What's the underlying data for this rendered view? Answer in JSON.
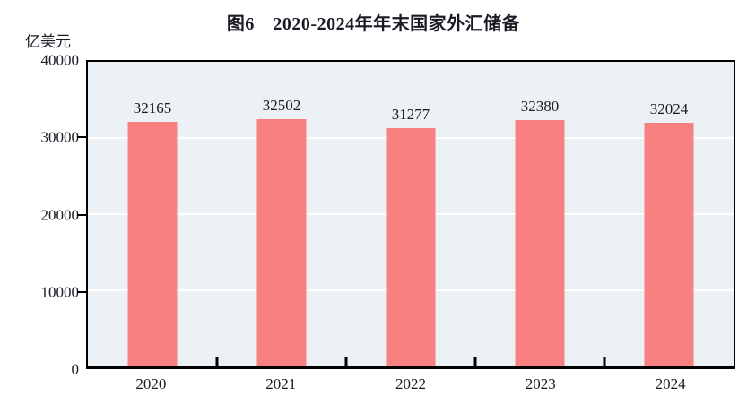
{
  "figure": {
    "title": "图6　2020-2024年年末国家外汇储备",
    "unit_label": "亿美元"
  },
  "chart_data": {
    "type": "bar",
    "title": "图6　2020-2024年年末国家外汇储备",
    "categories": [
      "2020",
      "2021",
      "2022",
      "2023",
      "2024"
    ],
    "values": [
      32165,
      32502,
      31277,
      32380,
      32024
    ],
    "xlabel": "",
    "ylabel": "亿美元",
    "ylim": [
      0,
      40000
    ],
    "yticks": [
      0,
      10000,
      20000,
      30000,
      40000
    ],
    "grid": "horizontal",
    "legend": "none",
    "data_labels": true,
    "colors": {
      "bar": "#f98080",
      "plot_background": "#ebf1f5",
      "gridline": "#ffffff",
      "frame": "#000000",
      "text": "#1a1a24"
    }
  }
}
